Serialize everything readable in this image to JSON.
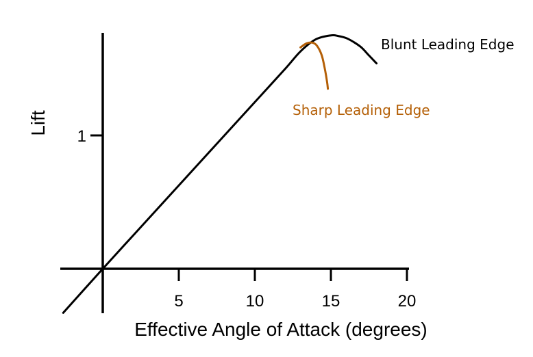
{
  "chart_data": {
    "type": "line",
    "title": "",
    "xlabel": "Effective Angle of Attack (degrees)",
    "ylabel": "Lift",
    "xlim": [
      -2.6,
      20
    ],
    "ylim": [
      -0.33,
      1.78
    ],
    "xticks": [
      5,
      10,
      15,
      20
    ],
    "yticks": [
      1
    ],
    "grid": false,
    "legend": "none",
    "series": [
      {
        "name": "Blunt Leading Edge",
        "color": "#000000",
        "x": [
          -2.6,
          0,
          2,
          4,
          6,
          8,
          10,
          12,
          13,
          14,
          15,
          15.5,
          16,
          16.5,
          17,
          17.5,
          18
        ],
        "y": [
          -0.33,
          0,
          0.25,
          0.5,
          0.75,
          1.0,
          1.25,
          1.5,
          1.63,
          1.72,
          1.75,
          1.745,
          1.73,
          1.7,
          1.66,
          1.6,
          1.54
        ]
      },
      {
        "name": "Sharp Leading Edge",
        "color": "#B45F06",
        "x": [
          13,
          13.4,
          13.8,
          14.1,
          14.4,
          14.6,
          14.75,
          14.8
        ],
        "y": [
          1.66,
          1.69,
          1.695,
          1.67,
          1.6,
          1.5,
          1.4,
          1.35
        ]
      }
    ]
  }
}
